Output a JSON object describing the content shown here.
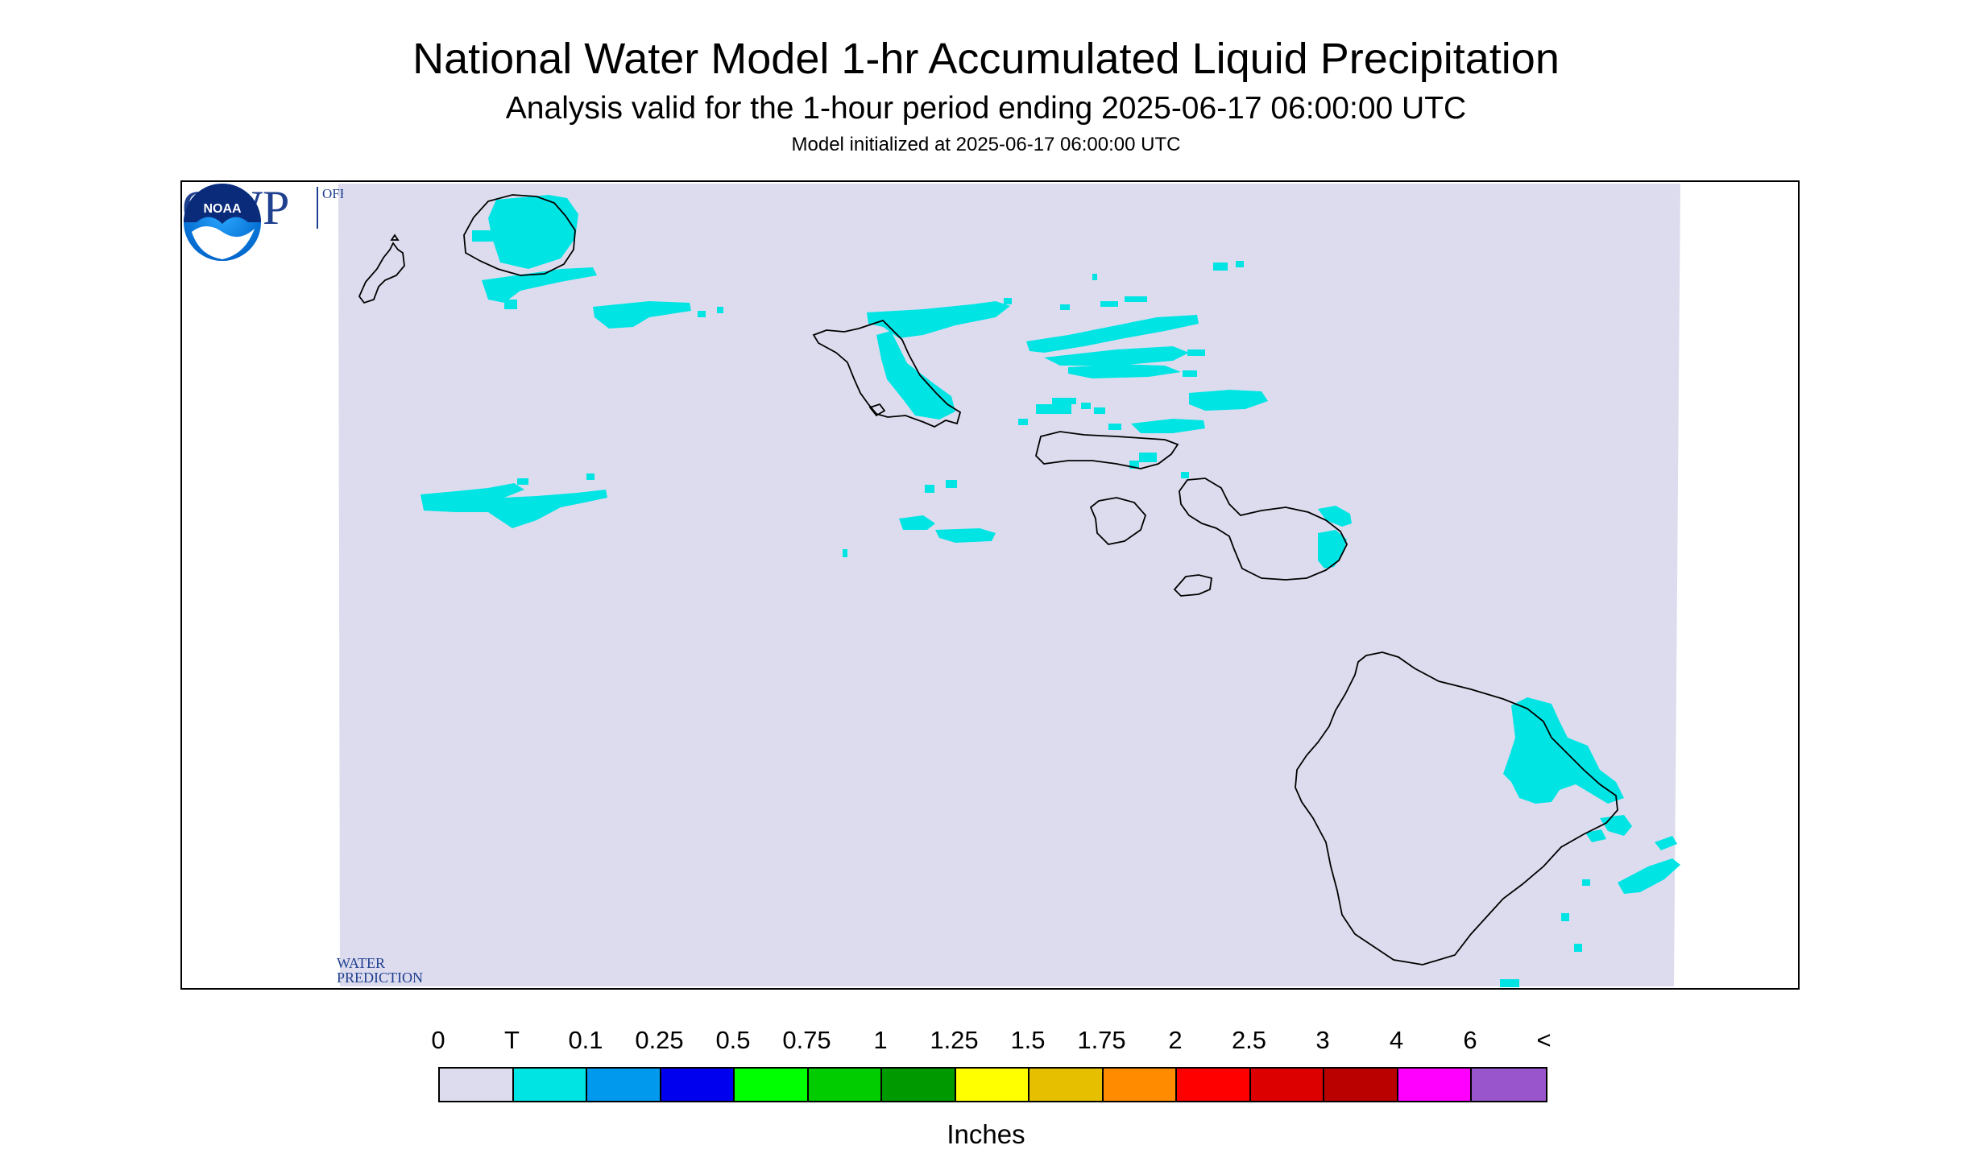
{
  "header": {
    "title": "National Water Model 1-hr Accumulated Liquid Precipitation",
    "subtitle": "Analysis valid for the 1-hour period ending 2025-06-17 06:00:00 UTC",
    "init": "Model initialized at 2025-06-17 06:00:00 UTC"
  },
  "map": {
    "background_color": "#dcdcee",
    "precip_color": "#00e4e4",
    "coast_color": "#000000"
  },
  "logos": {
    "owp_letters": "OWP",
    "owp_line1": "OFFICE OF",
    "owp_line2": "WATER",
    "owp_line3": "PREDICTION",
    "owp_color": "#1f3f8f",
    "noaa_text": "NOAA"
  },
  "legend": {
    "labels": [
      "0",
      "T",
      "0.1",
      "0.25",
      "0.5",
      "0.75",
      "1",
      "1.25",
      "1.5",
      "1.75",
      "2",
      "2.5",
      "3",
      "4",
      "6",
      "<"
    ],
    "colors": [
      "#dcdcee",
      "#00e4e4",
      "#0099ee",
      "#0000ee",
      "#00ff00",
      "#00cc00",
      "#009900",
      "#ffff00",
      "#e6c000",
      "#ff8c00",
      "#ff0000",
      "#dd0000",
      "#bb0000",
      "#ff00ff",
      "#9955cc"
    ],
    "units": "Inches"
  }
}
